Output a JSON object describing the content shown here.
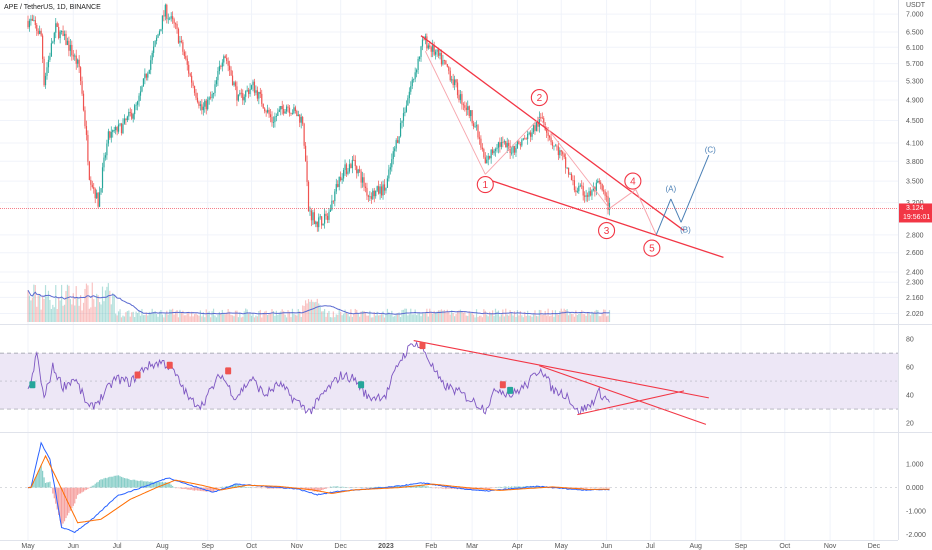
{
  "header": {
    "symbol_title": "APE / TetherUS, 1D, BINANCE"
  },
  "chart_data": [
    {
      "panel": "price",
      "type": "candlestick",
      "title": "APE / TetherUS, 1D, BINANCE",
      "y_unit": "USDT",
      "y_scale": "log",
      "ylim": [
        1.95,
        7.3
      ],
      "y_ticks": [
        "7.000",
        "6.500",
        "6.100",
        "5.700",
        "5.300",
        "4.900",
        "4.500",
        "4.100",
        "3.800",
        "3.500",
        "3.200",
        "2.800",
        "2.600",
        "2.400",
        "2.300",
        "2.160",
        "2.020"
      ],
      "last_price": "3.124",
      "countdown": "19:56:01",
      "price_anchors": [
        {
          "t": "2022-05-03",
          "p": 6.8
        },
        {
          "t": "2022-05-10",
          "p": 6.4
        },
        {
          "t": "2022-05-12",
          "p": 5.3
        },
        {
          "t": "2022-05-20",
          "p": 6.6
        },
        {
          "t": "2022-05-28",
          "p": 6.2
        },
        {
          "t": "2022-06-05",
          "p": 5.6
        },
        {
          "t": "2022-06-12",
          "p": 3.6
        },
        {
          "t": "2022-06-18",
          "p": 3.2
        },
        {
          "t": "2022-06-25",
          "p": 4.2
        },
        {
          "t": "2022-07-05",
          "p": 4.4
        },
        {
          "t": "2022-07-15",
          "p": 4.8
        },
        {
          "t": "2022-07-25",
          "p": 5.9
        },
        {
          "t": "2022-08-03",
          "p": 7.1
        },
        {
          "t": "2022-08-10",
          "p": 6.6
        },
        {
          "t": "2022-08-20",
          "p": 5.4
        },
        {
          "t": "2022-08-28",
          "p": 4.7
        },
        {
          "t": "2022-09-05",
          "p": 5.0
        },
        {
          "t": "2022-09-12",
          "p": 6.0
        },
        {
          "t": "2022-09-22",
          "p": 4.9
        },
        {
          "t": "2022-10-02",
          "p": 5.2
        },
        {
          "t": "2022-10-15",
          "p": 4.5
        },
        {
          "t": "2022-10-25",
          "p": 4.8
        },
        {
          "t": "2022-11-05",
          "p": 4.5
        },
        {
          "t": "2022-11-09",
          "p": 3.1
        },
        {
          "t": "2022-11-15",
          "p": 2.95
        },
        {
          "t": "2022-11-22",
          "p": 3.0
        },
        {
          "t": "2022-12-01",
          "p": 3.6
        },
        {
          "t": "2022-12-10",
          "p": 3.8
        },
        {
          "t": "2022-12-20",
          "p": 3.3
        },
        {
          "t": "2023-01-01",
          "p": 3.4
        },
        {
          "t": "2023-01-10",
          "p": 4.3
        },
        {
          "t": "2023-01-20",
          "p": 5.4
        },
        {
          "t": "2023-01-27",
          "p": 6.3
        },
        {
          "t": "2023-02-05",
          "p": 5.9
        },
        {
          "t": "2023-02-12",
          "p": 5.6
        },
        {
          "t": "2023-02-20",
          "p": 5.0
        },
        {
          "t": "2023-03-02",
          "p": 4.5
        },
        {
          "t": "2023-03-10",
          "p": 3.75
        },
        {
          "t": "2023-03-18",
          "p": 4.1
        },
        {
          "t": "2023-03-28",
          "p": 4.0
        },
        {
          "t": "2023-04-08",
          "p": 4.2
        },
        {
          "t": "2023-04-18",
          "p": 4.55
        },
        {
          "t": "2023-04-25",
          "p": 4.1
        },
        {
          "t": "2023-05-01",
          "p": 3.9
        },
        {
          "t": "2023-05-10",
          "p": 3.4
        },
        {
          "t": "2023-05-20",
          "p": 3.3
        },
        {
          "t": "2023-05-27",
          "p": 3.45
        },
        {
          "t": "2023-06-03",
          "p": 3.124
        }
      ],
      "wave_labels": [
        {
          "label": "1",
          "t": "2023-03-10",
          "p": 3.45,
          "color": "#f23645"
        },
        {
          "label": "2",
          "t": "2023-04-16",
          "p": 4.95,
          "color": "#f23645"
        },
        {
          "label": "3",
          "t": "2023-06-01",
          "p": 2.85,
          "color": "#f23645"
        },
        {
          "label": "4",
          "t": "2023-06-19",
          "p": 3.5,
          "color": "#f23645"
        },
        {
          "label": "5",
          "t": "2023-07-02",
          "p": 2.65,
          "color": "#f23645"
        },
        {
          "label": "(A)",
          "t": "2023-07-15",
          "p": 3.4,
          "color": "#4a7fb5"
        },
        {
          "label": "(B)",
          "t": "2023-07-25",
          "p": 2.87,
          "color": "#4a7fb5"
        },
        {
          "label": "(C)",
          "t": "2023-08-11",
          "p": 4.0,
          "color": "#4a7fb5"
        }
      ],
      "projection_path": [
        {
          "t": "2023-06-03",
          "p": 3.124
        },
        {
          "t": "2023-06-21",
          "p": 3.38
        },
        {
          "t": "2023-07-05",
          "p": 2.8
        },
        {
          "t": "2023-07-15",
          "p": 3.25
        },
        {
          "t": "2023-07-22",
          "p": 2.95
        },
        {
          "t": "2023-08-10",
          "p": 3.9
        }
      ],
      "wedge_upper": [
        {
          "t": "2023-01-25",
          "p": 6.4
        },
        {
          "t": "2023-07-24",
          "p": 2.85
        }
      ],
      "wedge_lower": [
        {
          "t": "2023-03-08",
          "p": 3.55
        },
        {
          "t": "2023-08-20",
          "p": 2.55
        }
      ],
      "volume_ma_color": "#5a6ad0"
    },
    {
      "panel": "rsi",
      "type": "line",
      "ylim": [
        15,
        88
      ],
      "y_ticks": [
        "80",
        "60",
        "40",
        "20"
      ],
      "band_upper": 70,
      "band_lower": 30,
      "rsi_anchors": [
        {
          "t": "2022-05-03",
          "v": 47
        },
        {
          "t": "2022-05-07",
          "v": 70
        },
        {
          "t": "2022-05-12",
          "v": 37
        },
        {
          "t": "2022-05-18",
          "v": 60
        },
        {
          "t": "2022-05-25",
          "v": 46
        },
        {
          "t": "2022-06-02",
          "v": 52
        },
        {
          "t": "2022-06-12",
          "v": 30
        },
        {
          "t": "2022-06-20",
          "v": 38
        },
        {
          "t": "2022-06-30",
          "v": 52
        },
        {
          "t": "2022-07-10",
          "v": 49
        },
        {
          "t": "2022-07-20",
          "v": 60
        },
        {
          "t": "2022-08-01",
          "v": 64
        },
        {
          "t": "2022-08-08",
          "v": 58
        },
        {
          "t": "2022-08-20",
          "v": 36
        },
        {
          "t": "2022-08-28",
          "v": 33
        },
        {
          "t": "2022-09-10",
          "v": 55
        },
        {
          "t": "2022-09-20",
          "v": 38
        },
        {
          "t": "2022-10-01",
          "v": 52
        },
        {
          "t": "2022-10-10",
          "v": 40
        },
        {
          "t": "2022-10-20",
          "v": 48
        },
        {
          "t": "2022-10-30",
          "v": 37
        },
        {
          "t": "2022-11-10",
          "v": 28
        },
        {
          "t": "2022-11-20",
          "v": 42
        },
        {
          "t": "2022-12-01",
          "v": 54
        },
        {
          "t": "2022-12-10",
          "v": 52
        },
        {
          "t": "2022-12-20",
          "v": 38
        },
        {
          "t": "2023-01-01",
          "v": 40
        },
        {
          "t": "2023-01-10",
          "v": 64
        },
        {
          "t": "2023-01-20",
          "v": 78
        },
        {
          "t": "2023-01-27",
          "v": 72
        },
        {
          "t": "2023-02-08",
          "v": 48
        },
        {
          "t": "2023-02-20",
          "v": 42
        },
        {
          "t": "2023-03-01",
          "v": 36
        },
        {
          "t": "2023-03-10",
          "v": 30
        },
        {
          "t": "2023-03-18",
          "v": 45
        },
        {
          "t": "2023-03-28",
          "v": 40
        },
        {
          "t": "2023-04-08",
          "v": 48
        },
        {
          "t": "2023-04-17",
          "v": 60
        },
        {
          "t": "2023-04-25",
          "v": 44
        },
        {
          "t": "2023-05-05",
          "v": 40
        },
        {
          "t": "2023-05-12",
          "v": 28
        },
        {
          "t": "2023-05-20",
          "v": 32
        },
        {
          "t": "2023-05-27",
          "v": 42
        },
        {
          "t": "2023-06-03",
          "v": 35
        }
      ],
      "trendlines": [
        [
          {
            "t": "2023-01-20",
            "v": 79
          },
          {
            "t": "2023-08-10",
            "v": 38
          }
        ],
        [
          {
            "t": "2023-04-16",
            "v": 61
          },
          {
            "t": "2023-08-08",
            "v": 19
          }
        ],
        [
          {
            "t": "2023-05-12",
            "v": 26
          },
          {
            "t": "2023-07-24",
            "v": 43
          }
        ]
      ],
      "signal_markers": [
        {
          "t": "2022-05-04",
          "v": 47,
          "kind": "bull"
        },
        {
          "t": "2022-07-15",
          "v": 54,
          "kind": "bear"
        },
        {
          "t": "2022-08-06",
          "v": 61,
          "kind": "bear"
        },
        {
          "t": "2022-09-15",
          "v": 57,
          "kind": "bear"
        },
        {
          "t": "2022-12-15",
          "v": 47,
          "kind": "bull"
        },
        {
          "t": "2023-01-26",
          "v": 75,
          "kind": "bear"
        },
        {
          "t": "2023-03-22",
          "v": 47,
          "kind": "bear"
        },
        {
          "t": "2023-03-27",
          "v": 43,
          "kind": "bull"
        }
      ]
    },
    {
      "panel": "macd",
      "type": "line+histogram",
      "ylim": [
        -2.15,
        2.2
      ],
      "y_ticks": [
        "1.000",
        "0.000",
        "-1.000",
        "-2.000"
      ],
      "macd_anchors": [
        {
          "t": "2022-05-03",
          "v": 0.0
        },
        {
          "t": "2022-05-10",
          "v": 1.9
        },
        {
          "t": "2022-05-16",
          "v": 1.2
        },
        {
          "t": "2022-05-24",
          "v": -1.7
        },
        {
          "t": "2022-06-02",
          "v": -1.9
        },
        {
          "t": "2022-06-15",
          "v": -1.3
        },
        {
          "t": "2022-07-01",
          "v": -0.35
        },
        {
          "t": "2022-07-20",
          "v": 0.05
        },
        {
          "t": "2022-08-05",
          "v": 0.42
        },
        {
          "t": "2022-08-20",
          "v": 0.1
        },
        {
          "t": "2022-09-05",
          "v": -0.2
        },
        {
          "t": "2022-09-20",
          "v": 0.15
        },
        {
          "t": "2022-10-10",
          "v": 0.05
        },
        {
          "t": "2022-11-01",
          "v": -0.05
        },
        {
          "t": "2022-11-15",
          "v": -0.3
        },
        {
          "t": "2022-12-01",
          "v": -0.15
        },
        {
          "t": "2023-01-01",
          "v": 0.0
        },
        {
          "t": "2023-01-27",
          "v": 0.2
        },
        {
          "t": "2023-02-15",
          "v": 0.0
        },
        {
          "t": "2023-03-10",
          "v": -0.15
        },
        {
          "t": "2023-04-15",
          "v": 0.05
        },
        {
          "t": "2023-05-15",
          "v": -0.1
        },
        {
          "t": "2023-06-03",
          "v": -0.08
        }
      ],
      "signal_anchors": [
        {
          "t": "2022-05-03",
          "v": 0.0
        },
        {
          "t": "2022-05-13",
          "v": 1.35
        },
        {
          "t": "2022-05-22",
          "v": 0.2
        },
        {
          "t": "2022-06-04",
          "v": -1.5
        },
        {
          "t": "2022-06-20",
          "v": -1.35
        },
        {
          "t": "2022-07-10",
          "v": -0.5
        },
        {
          "t": "2022-07-28",
          "v": 0.0
        },
        {
          "t": "2022-08-10",
          "v": 0.32
        },
        {
          "t": "2022-08-28",
          "v": 0.1
        },
        {
          "t": "2022-09-10",
          "v": -0.1
        },
        {
          "t": "2022-09-28",
          "v": 0.1
        },
        {
          "t": "2022-10-20",
          "v": 0.05
        },
        {
          "t": "2022-11-12",
          "v": -0.1
        },
        {
          "t": "2022-11-25",
          "v": -0.25
        },
        {
          "t": "2022-12-10",
          "v": -0.1
        },
        {
          "t": "2023-01-10",
          "v": 0.0
        },
        {
          "t": "2023-02-02",
          "v": 0.15
        },
        {
          "t": "2023-02-25",
          "v": 0.0
        },
        {
          "t": "2023-03-20",
          "v": -0.12
        },
        {
          "t": "2023-04-25",
          "v": 0.03
        },
        {
          "t": "2023-05-20",
          "v": -0.08
        },
        {
          "t": "2023-06-03",
          "v": -0.07
        }
      ],
      "macd_color": "#2962ff",
      "signal_color": "#ff6d00"
    }
  ],
  "x_axis": {
    "labels": [
      {
        "t": "2022-05-01",
        "text": "May"
      },
      {
        "t": "2022-06-01",
        "text": "Jun"
      },
      {
        "t": "2022-07-01",
        "text": "Jul"
      },
      {
        "t": "2022-08-01",
        "text": "Aug"
      },
      {
        "t": "2022-09-01",
        "text": "Sep"
      },
      {
        "t": "2022-10-01",
        "text": "Oct"
      },
      {
        "t": "2022-11-01",
        "text": "Nov"
      },
      {
        "t": "2022-12-01",
        "text": "Dec"
      },
      {
        "t": "2023-01-01",
        "text": "2023"
      },
      {
        "t": "2023-02-01",
        "text": "Feb"
      },
      {
        "t": "2023-03-01",
        "text": "Mar"
      },
      {
        "t": "2023-04-01",
        "text": "Apr"
      },
      {
        "t": "2023-05-01",
        "text": "May"
      },
      {
        "t": "2023-06-01",
        "text": "Jun"
      },
      {
        "t": "2023-07-01",
        "text": "Jul"
      },
      {
        "t": "2023-08-01",
        "text": "Aug"
      },
      {
        "t": "2023-09-01",
        "text": "Sep"
      },
      {
        "t": "2023-10-01",
        "text": "Oct"
      },
      {
        "t": "2023-11-01",
        "text": "Nov"
      },
      {
        "t": "2023-12-01",
        "text": "Dec"
      }
    ]
  },
  "colors": {
    "up": "#26a69a",
    "down": "#ef5350",
    "annotation": "#f23645",
    "projection_pink": "#f7a5ad",
    "correction_blue": "#4a7fb5",
    "rsi_line": "#7e57c2",
    "rsi_band": "#ede7f6",
    "grid": "#f0f3fa",
    "axis_text": "#555555",
    "price_tag": "#f23645"
  }
}
